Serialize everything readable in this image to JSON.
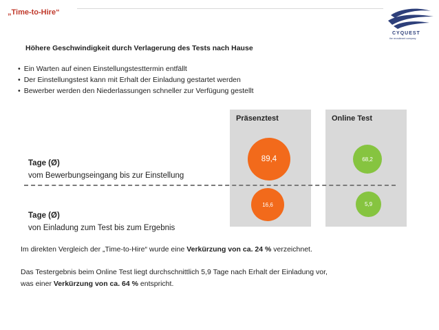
{
  "header": {
    "title": "„Time-to-Hire“",
    "logo": {
      "name": "CYQUEST",
      "tagline": "the recruitment company",
      "icon": "swoosh-logo"
    }
  },
  "subtitle": "Höhere Geschwindigkeit durch Verlagerung des Tests nach Hause",
  "bullets": [
    "Ein Warten auf einen Einstellungstesttermin entfällt",
    "Der Einstellungstest kann mit Erhalt der Einladung gestartet werden",
    "Bewerber werden den Niederlassungen schneller zur Verfügung gestellt"
  ],
  "columns": {
    "praesenz": {
      "label": "Präsenztest",
      "color": "#f26a1b",
      "values": [
        "89,4",
        "16,6"
      ]
    },
    "online": {
      "label": "Online Test",
      "color": "#86c440",
      "values": [
        "68,2",
        "5,9"
      ]
    }
  },
  "rows": [
    {
      "label_strong": "Tage (Ø)",
      "label_sub": "vom Bewerbungseingang bis zur Einstellung"
    },
    {
      "label_strong": "Tage (Ø)",
      "label_sub": "von Einladung zum Test bis zum Ergebnis"
    }
  ],
  "paragraphs": {
    "p1_pre": "Im direkten Vergleich der „Time-to-Hire“ wurde eine ",
    "p1_bold": "Verkürzung von ca. 24 %",
    "p1_post": " verzeichnet.",
    "p2_line1": "Das Testergebnis beim Online Test liegt durchschnittlich 5,9 Tage nach Erhalt der Einladung vor,",
    "p2_pre": "was einer ",
    "p2_bold": "Verkürzung von ca. 64 %",
    "p2_post": " entspricht."
  }
}
